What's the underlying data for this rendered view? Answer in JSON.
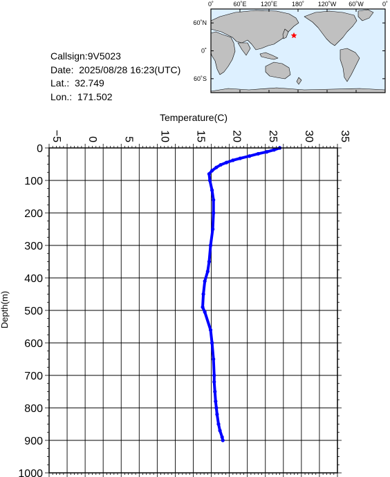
{
  "station": {
    "callsign": "Callsign:9V5023",
    "date": "Date:  2025/08/28 16:23(UTC)",
    "lat": "Lat.:  32.749",
    "lon": "Lon.:  171.502"
  },
  "map": {
    "top_labels": [
      "0˚",
      "60˚E",
      "120˚E",
      "180˚",
      "120˚W",
      "60˚W",
      "0˚"
    ],
    "lat_labels": [
      "60˚N",
      "0˚",
      "60˚S"
    ],
    "marker": {
      "lat": 32.749,
      "lon": 171.502
    },
    "colors": {
      "ocean": "#ddf0ff",
      "land": "#c0c0c0",
      "marker": "#ff0000"
    }
  },
  "chart_data": {
    "type": "line",
    "xlabel": "Temperature(C)",
    "ylabel": "Depth(m)",
    "xlim": [
      -5,
      35
    ],
    "ylim": [
      0,
      1000
    ],
    "y_inverted": true,
    "x_ticks": [
      -5,
      0,
      5,
      10,
      15,
      20,
      25,
      30,
      35
    ],
    "y_ticks": [
      0,
      100,
      200,
      300,
      400,
      500,
      600,
      700,
      800,
      900,
      1000
    ],
    "grid": true,
    "series": [
      {
        "color": "#0000ff",
        "x": [
          27.0,
          26.2,
          25.2,
          24.0,
          22.8,
          21.5,
          20.5,
          19.6,
          18.8,
          18.2,
          17.6,
          17.2,
          17.3,
          17.6,
          17.8,
          17.8,
          17.7,
          17.4,
          17.2,
          17.0,
          16.6,
          16.4,
          16.3,
          16.6,
          17.4,
          17.6,
          17.8,
          17.9,
          17.9,
          18.0,
          18.1,
          18.2,
          18.3,
          18.5,
          18.7,
          19.0,
          19.1
        ],
        "y": [
          0,
          6,
          12,
          18,
          25,
          32,
          38,
          45,
          52,
          60,
          70,
          80,
          100,
          130,
          160,
          200,
          250,
          300,
          350,
          380,
          410,
          450,
          490,
          505,
          560,
          600,
          650,
          700,
          720,
          750,
          780,
          800,
          820,
          850,
          870,
          890,
          900
        ]
      }
    ]
  }
}
